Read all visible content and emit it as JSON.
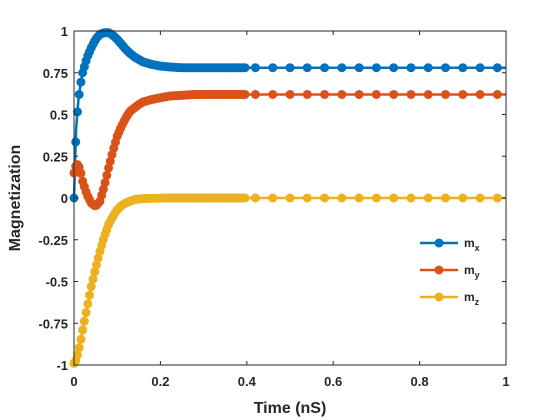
{
  "chart_data": {
    "type": "line",
    "title": "",
    "xlabel": "Time (nS)",
    "ylabel": "Magnetization",
    "xlim": [
      0,
      1
    ],
    "ylim": [
      -1,
      1
    ],
    "x_ticks": [
      0,
      0.2,
      0.4,
      0.6,
      0.8,
      1
    ],
    "x_tick_labels": [
      "0",
      "0.2",
      "0.4",
      "0.6",
      "0.8",
      "1"
    ],
    "y_ticks": [
      -1,
      -0.75,
      -0.5,
      -0.25,
      0,
      0.25,
      0.5,
      0.75,
      1
    ],
    "y_tick_labels": [
      "-1",
      "-0.75",
      "-0.5",
      "-0.25",
      "0",
      "0.25",
      "0.5",
      "0.75",
      "1"
    ],
    "grid": false,
    "legend_position": "center-right",
    "x": [
      0,
      0.005,
      0.01,
      0.015,
      0.02,
      0.03,
      0.04,
      0.05,
      0.06,
      0.07,
      0.08,
      0.09,
      0.1,
      0.11,
      0.12,
      0.13,
      0.14,
      0.15,
      0.16,
      0.18,
      0.2,
      0.22,
      0.25,
      0.28,
      0.3,
      0.33,
      0.36,
      0.4,
      0.44,
      0.48,
      0.52,
      0.56,
      0.6,
      0.64,
      0.68,
      0.72,
      0.76,
      0.8,
      0.84,
      0.88,
      0.92,
      0.96,
      1
    ],
    "series": [
      {
        "name": "m",
        "subscript": "x",
        "color": "#0072BD",
        "values": [
          0.0,
          0.42,
          0.58,
          0.68,
          0.75,
          0.84,
          0.9,
          0.95,
          0.98,
          0.99,
          0.99,
          0.975,
          0.95,
          0.92,
          0.89,
          0.865,
          0.845,
          0.83,
          0.815,
          0.8,
          0.79,
          0.785,
          0.78,
          0.78,
          0.78,
          0.78,
          0.78,
          0.78,
          0.78,
          0.78,
          0.78,
          0.78,
          0.78,
          0.78,
          0.78,
          0.78,
          0.78,
          0.78,
          0.78,
          0.78,
          0.78,
          0.78,
          0.78
        ]
      },
      {
        "name": "m",
        "subscript": "y",
        "color": "#D95319",
        "values": [
          0.15,
          0.2,
          0.2,
          0.16,
          0.1,
          0.02,
          -0.03,
          -0.05,
          -0.02,
          0.07,
          0.18,
          0.28,
          0.37,
          0.43,
          0.48,
          0.52,
          0.54,
          0.56,
          0.575,
          0.59,
          0.6,
          0.61,
          0.615,
          0.62,
          0.62,
          0.62,
          0.62,
          0.62,
          0.62,
          0.62,
          0.62,
          0.62,
          0.62,
          0.62,
          0.62,
          0.62,
          0.62,
          0.62,
          0.62,
          0.62,
          0.62,
          0.62,
          0.62
        ]
      },
      {
        "name": "m",
        "subscript": "z",
        "color": "#EDB120",
        "values": [
          -0.99,
          -0.97,
          -0.92,
          -0.86,
          -0.79,
          -0.66,
          -0.53,
          -0.42,
          -0.32,
          -0.23,
          -0.16,
          -0.11,
          -0.07,
          -0.045,
          -0.03,
          -0.018,
          -0.01,
          -0.006,
          -0.004,
          -0.002,
          -0.001,
          0,
          0,
          0,
          0,
          0,
          0,
          0,
          0,
          0,
          0,
          0,
          0,
          0,
          0,
          0,
          0,
          0,
          0,
          0,
          0,
          0,
          0
        ]
      }
    ]
  }
}
